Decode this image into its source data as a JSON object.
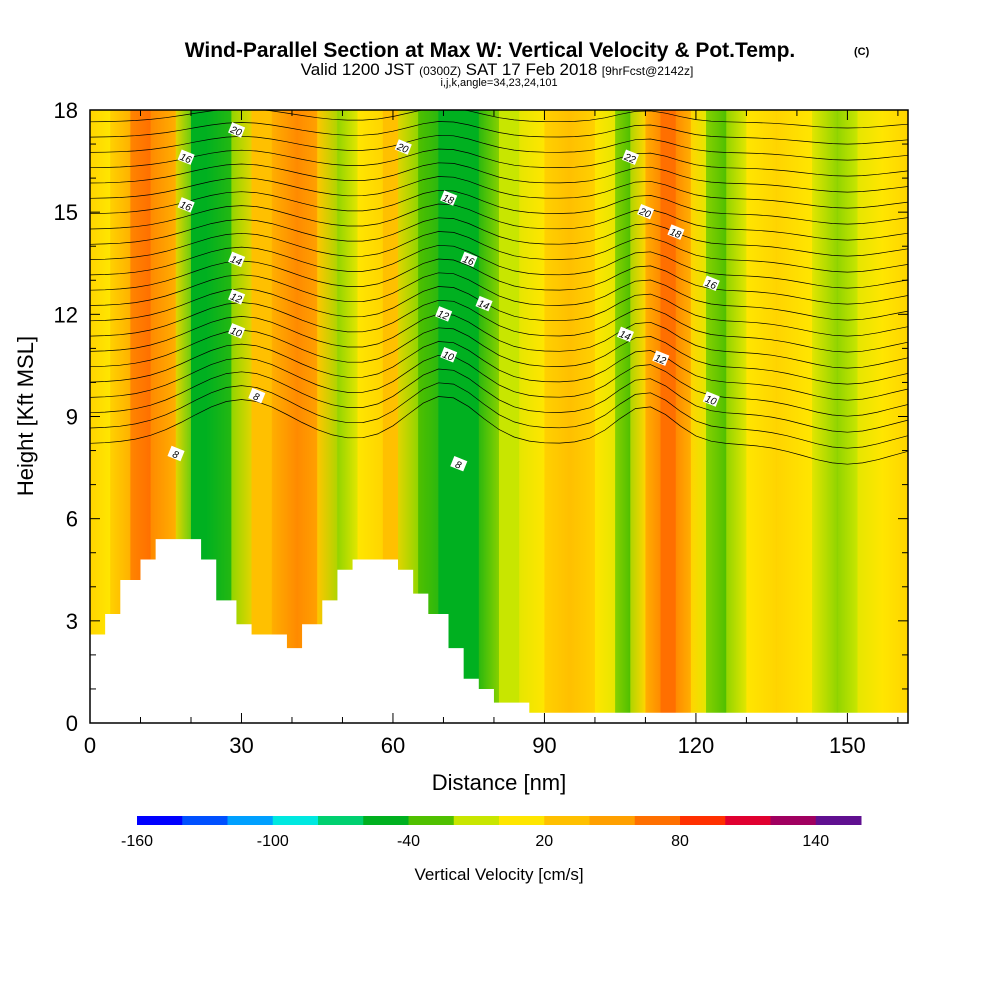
{
  "title": {
    "main": "Wind-Parallel Section at Max W: Vertical Velocity & Pot.Temp.",
    "copyright": "(C)",
    "valid_prefix": "Valid 1200 JST",
    "valid_utc": "(0300Z)",
    "valid_date": "SAT 17 Feb 2018",
    "forecast": "[9hrFcst@2142z]",
    "indices": "i,j,k,angle=34,23,24,101"
  },
  "chart_data": {
    "type": "heatmap",
    "xlabel": "Distance [nm]",
    "ylabel": "Height [Kft MSL]",
    "xlim": [
      0,
      162
    ],
    "ylim": [
      0,
      18
    ],
    "x_ticks": [
      "0",
      "30",
      "60",
      "90",
      "120",
      "150"
    ],
    "y_ticks": [
      "0",
      "3",
      "6",
      "9",
      "12",
      "15",
      "18"
    ],
    "colorbar": {
      "title": "Vertical Velocity [cm/s]",
      "tick_labels": [
        "-160",
        "-100",
        "-40",
        "20",
        "80",
        "140"
      ],
      "levels": [
        -160,
        -140,
        -120,
        -100,
        -80,
        -60,
        -40,
        -20,
        0,
        20,
        40,
        60,
        80,
        100,
        120,
        140,
        160
      ],
      "colors": [
        "#0000ff",
        "#0050ff",
        "#00a0ff",
        "#00e8e0",
        "#00d070",
        "#00b020",
        "#50c000",
        "#c8e600",
        "#ffe600",
        "#ffc000",
        "#ffa000",
        "#ff7000",
        "#ff3000",
        "#e00030",
        "#a00060",
        "#601090"
      ]
    },
    "velocity_columns": [
      {
        "x": 0,
        "w": 22
      },
      {
        "x": 4,
        "w": 5
      },
      {
        "x": 8,
        "w": 58
      },
      {
        "x": 12,
        "w": 62
      },
      {
        "x": 17,
        "w": 28
      },
      {
        "x": 20,
        "w": -48
      },
      {
        "x": 23,
        "w": -52
      },
      {
        "x": 28,
        "w": -30
      },
      {
        "x": 32,
        "w": 28
      },
      {
        "x": 36,
        "w": 30
      },
      {
        "x": 41,
        "w": 78
      },
      {
        "x": 45,
        "w": 40
      },
      {
        "x": 49,
        "w": -25
      },
      {
        "x": 53,
        "w": 8
      },
      {
        "x": 58,
        "w": 30
      },
      {
        "x": 61,
        "w": 22
      },
      {
        "x": 65,
        "w": -25
      },
      {
        "x": 69,
        "w": -45
      },
      {
        "x": 73,
        "w": -60
      },
      {
        "x": 77,
        "w": -50
      },
      {
        "x": 81,
        "w": -10
      },
      {
        "x": 85,
        "w": -5
      },
      {
        "x": 90,
        "w": 15
      },
      {
        "x": 95,
        "w": 25
      },
      {
        "x": 100,
        "w": 15
      },
      {
        "x": 104,
        "w": -15
      },
      {
        "x": 107,
        "w": -30
      },
      {
        "x": 110,
        "w": 30
      },
      {
        "x": 113,
        "w": 62
      },
      {
        "x": 116,
        "w": 72
      },
      {
        "x": 119,
        "w": 20
      },
      {
        "x": 122,
        "w": -20
      },
      {
        "x": 126,
        "w": -30
      },
      {
        "x": 130,
        "w": 5
      },
      {
        "x": 136,
        "w": 20
      },
      {
        "x": 143,
        "w": 10
      },
      {
        "x": 148,
        "w": -22
      },
      {
        "x": 152,
        "w": -10
      },
      {
        "x": 157,
        "w": 15
      },
      {
        "x": 162,
        "w": 20
      }
    ],
    "terrain": [
      {
        "x": 0,
        "h": 2.6
      },
      {
        "x": 3,
        "h": 3.2
      },
      {
        "x": 6,
        "h": 4.2
      },
      {
        "x": 10,
        "h": 4.8
      },
      {
        "x": 13,
        "h": 5.4
      },
      {
        "x": 22,
        "h": 4.8
      },
      {
        "x": 25,
        "h": 3.6
      },
      {
        "x": 29,
        "h": 2.9
      },
      {
        "x": 32,
        "h": 2.6
      },
      {
        "x": 39,
        "h": 2.2
      },
      {
        "x": 42,
        "h": 2.9
      },
      {
        "x": 46,
        "h": 3.6
      },
      {
        "x": 49,
        "h": 4.5
      },
      {
        "x": 52,
        "h": 4.8
      },
      {
        "x": 61,
        "h": 4.5
      },
      {
        "x": 64,
        "h": 3.8
      },
      {
        "x": 67,
        "h": 3.2
      },
      {
        "x": 71,
        "h": 2.2
      },
      {
        "x": 74,
        "h": 1.3
      },
      {
        "x": 77,
        "h": 1.0
      },
      {
        "x": 80,
        "h": 0.6
      },
      {
        "x": 87,
        "h": 0.3
      },
      {
        "x": 162,
        "h": 0.3
      }
    ],
    "theta_contour_labels": [
      {
        "text": "20",
        "x": 29,
        "y": 17.4
      },
      {
        "text": "16",
        "x": 19,
        "y": 16.6
      },
      {
        "text": "16",
        "x": 19,
        "y": 15.2
      },
      {
        "text": "14",
        "x": 29,
        "y": 13.6
      },
      {
        "text": "12",
        "x": 29,
        "y": 12.5
      },
      {
        "text": "10",
        "x": 29,
        "y": 11.5
      },
      {
        "text": "8",
        "x": 33,
        "y": 9.6
      },
      {
        "text": "8",
        "x": 17,
        "y": 7.9
      },
      {
        "text": "20",
        "x": 62,
        "y": 16.9
      },
      {
        "text": "18",
        "x": 71,
        "y": 15.4
      },
      {
        "text": "16",
        "x": 75,
        "y": 13.6
      },
      {
        "text": "14",
        "x": 78,
        "y": 12.3
      },
      {
        "text": "12",
        "x": 70,
        "y": 12.0
      },
      {
        "text": "10",
        "x": 71,
        "y": 10.8
      },
      {
        "text": "8",
        "x": 73,
        "y": 7.6
      },
      {
        "text": "22",
        "x": 107,
        "y": 16.6
      },
      {
        "text": "20",
        "x": 110,
        "y": 15.0
      },
      {
        "text": "18",
        "x": 116,
        "y": 14.4
      },
      {
        "text": "16",
        "x": 123,
        "y": 12.9
      },
      {
        "text": "14",
        "x": 106,
        "y": 11.4
      },
      {
        "text": "12",
        "x": 113,
        "y": 10.7
      },
      {
        "text": "10",
        "x": 123,
        "y": 9.5
      }
    ]
  }
}
